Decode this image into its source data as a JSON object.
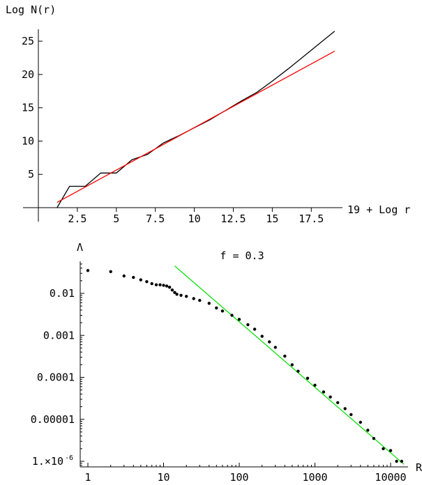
{
  "chart_data": [
    {
      "type": "line",
      "ylabel": "Log N(r)",
      "xlabel": "19 + Log r",
      "xlim": [
        0,
        19.5
      ],
      "ylim": [
        0,
        27
      ],
      "x_ticks": [
        2.5,
        5,
        7.5,
        10,
        12.5,
        15,
        17.5
      ],
      "x_tick_labels": [
        "2.5",
        "5",
        "7.5",
        "10",
        "12.5",
        "15",
        "17.5"
      ],
      "y_ticks": [
        5,
        10,
        15,
        20,
        25
      ],
      "y_tick_labels": [
        "5",
        "10",
        "15",
        "20",
        "25"
      ],
      "grid": false,
      "series": [
        {
          "color": "#000000",
          "x": [
            1.2,
            2.0,
            3.0,
            4.0,
            5.0,
            6.0,
            7.0,
            8.0,
            9.0,
            10.0,
            11.0,
            12.0,
            13.0,
            14.0,
            15.0,
            16.0,
            17.0,
            18.0,
            19.0
          ],
          "y": [
            0.0,
            3.2,
            3.2,
            5.2,
            5.2,
            7.2,
            8.0,
            9.7,
            10.8,
            12.0,
            13.2,
            14.6,
            16.0,
            17.3,
            19.0,
            20.8,
            22.7,
            24.6,
            26.5
          ]
        },
        {
          "color": "#ff0000",
          "x": [
            1.2,
            19.0
          ],
          "y": [
            0.8,
            23.5
          ]
        }
      ]
    },
    {
      "type": "scatter",
      "title": "f = 0.3",
      "ylabel": "Λ",
      "xlabel": "R",
      "xscale": "log",
      "yscale": "log",
      "xlim": [
        0.8,
        16000
      ],
      "ylim": [
        8e-07,
        0.05
      ],
      "x_ticks": [
        1,
        10,
        100,
        1000,
        10000
      ],
      "x_tick_labels": [
        "1",
        "10",
        "100",
        "1000",
        "10000"
      ],
      "y_ticks": [
        0.01,
        0.001,
        0.0001,
        1e-05,
        1e-06
      ],
      "y_tick_labels": [
        "0.01",
        "0.001",
        "0.0001",
        "0.00001",
        "1.×10"
      ],
      "y_tick_exp_label": "-6",
      "grid": false,
      "series": [
        {
          "color": "#000000",
          "x": [
            1,
            2,
            3,
            4,
            5,
            6,
            7,
            8,
            9,
            10,
            11,
            12,
            13,
            14,
            15,
            17,
            20,
            25,
            30,
            40,
            50,
            60,
            80,
            100,
            130,
            160,
            200,
            250,
            300,
            400,
            500,
            600,
            800,
            1000,
            1300,
            1600,
            2000,
            2500,
            3000,
            4000,
            5000,
            6000,
            8000,
            10000,
            12000,
            14000
          ],
          "y": [
            0.035,
            0.033,
            0.026,
            0.024,
            0.021,
            0.019,
            0.017,
            0.016,
            0.016,
            0.0155,
            0.015,
            0.014,
            0.012,
            0.0105,
            0.0095,
            0.009,
            0.0085,
            0.0075,
            0.0068,
            0.0058,
            0.0045,
            0.0038,
            0.003,
            0.0024,
            0.0018,
            0.0014,
            0.00095,
            0.0007,
            0.00052,
            0.00032,
            0.0002,
            0.00014,
            9.5e-05,
            6.5e-05,
            4.5e-05,
            3.4e-05,
            2.5e-05,
            1.8e-05,
            1.3e-05,
            8.5e-06,
            5.5e-06,
            3.5e-06,
            2e-06,
            1.8e-06,
            1e-06,
            1e-06
          ]
        },
        {
          "color": "#00dd00",
          "x": [
            14,
            15000
          ],
          "y": [
            0.045,
            8.5e-07
          ]
        }
      ]
    }
  ]
}
